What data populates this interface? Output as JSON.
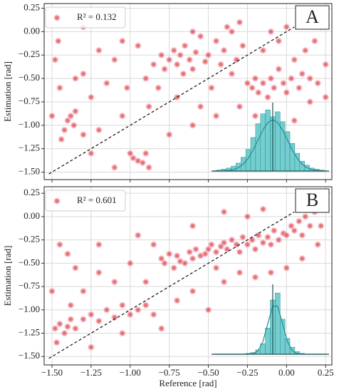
{
  "chart_data": [
    {
      "type": "scatter",
      "panel_label": "A",
      "legend_label": "R² = 0.132",
      "ylabel": "Estimation [rad]",
      "color": "#d9442f",
      "grid": true,
      "xlim": [
        -1.55,
        0.29
      ],
      "ylim": [
        -1.58,
        0.3
      ],
      "xticks": [
        -1.5,
        -1.25,
        -1.0,
        -0.75,
        -0.5,
        -0.25,
        0.0,
        0.25
      ],
      "yticks": [
        0.25,
        {
          "value": 0.0,
          "label": "0.00"
        },
        {
          "value": -0.25,
          "label": "−0.25"
        },
        {
          "value": -0.5,
          "label": "−0.50"
        },
        {
          "value": -0.75,
          "label": "−0.75"
        },
        {
          "value": -1.0,
          "label": "−1.00"
        },
        {
          "value": -1.25,
          "label": "−1.25"
        },
        {
          "value": -1.5,
          "label": "−1.50"
        }
      ],
      "x": [
        -1.45,
        -1.42,
        -1.4,
        -1.38,
        -1.36,
        -1.44,
        -1.35,
        -1.3,
        -1.48,
        -1.46,
        -1.3,
        -1.25,
        -1.2,
        -1.15,
        -1.1,
        -1.05,
        -1.0,
        -0.98,
        -0.95,
        -0.92,
        -0.88,
        -0.9,
        -1.02,
        -0.95,
        -0.88,
        -0.85,
        -0.8,
        -0.78,
        -0.75,
        -0.72,
        -0.7,
        -0.68,
        -0.66,
        -0.65,
        -0.62,
        -0.6,
        -0.58,
        -0.55,
        -0.52,
        -0.5,
        -0.48,
        -0.45,
        -0.42,
        -0.4,
        -0.38,
        -0.35,
        -0.32,
        -0.3,
        -0.28,
        -0.25,
        -0.22,
        -0.2,
        -0.18,
        -0.15,
        -0.12,
        -0.1,
        -0.08,
        -0.05,
        -0.02,
        0.0,
        0.03,
        0.05,
        0.08,
        0.1,
        0.12,
        0.15,
        0.18,
        0.2,
        0.22,
        0.25,
        -0.15,
        -0.1,
        -0.3,
        -0.45,
        -0.6,
        -0.75,
        -0.82,
        -1.2,
        -1.35,
        -1.5,
        -1.25,
        -1.1,
        -0.7,
        -0.55,
        -0.2,
        0.05,
        0.15,
        -0.05,
        0.0,
        -0.35,
        -0.6,
        -1.3,
        -1.05,
        0.25,
        -0.9
      ],
      "y": [
        -0.6,
        -1.05,
        -0.95,
        -0.9,
        -1.0,
        -1.15,
        -0.85,
        -1.1,
        -0.3,
        -0.1,
        -0.45,
        -0.7,
        -1.05,
        -0.55,
        -0.3,
        -0.9,
        -1.3,
        -1.35,
        -1.38,
        -1.4,
        -1.45,
        -1.3,
        -0.6,
        -0.15,
        -0.8,
        -0.35,
        -0.25,
        -0.4,
        -0.3,
        -0.2,
        -0.35,
        -0.25,
        -0.45,
        -0.15,
        -0.3,
        -0.4,
        -0.22,
        -0.05,
        -0.32,
        -0.25,
        -0.6,
        -0.1,
        -0.35,
        -0.2,
        0.05,
        -0.45,
        -0.3,
        0.1,
        -0.15,
        -0.55,
        -0.6,
        -0.5,
        -0.65,
        -0.55,
        -0.7,
        -0.5,
        -0.6,
        -0.4,
        -0.55,
        -0.65,
        -0.5,
        -0.3,
        -0.6,
        -0.45,
        -0.2,
        -0.5,
        -0.1,
        -0.55,
        0.05,
        -0.35,
        -0.2,
        0.0,
        -0.8,
        -0.9,
        -1.0,
        -1.1,
        -0.6,
        -0.2,
        -0.5,
        -0.9,
        -1.3,
        -1.45,
        -0.7,
        -0.8,
        -0.9,
        -0.95,
        -0.75,
        -0.1,
        0.05,
        0.0,
        0.0,
        0.05,
        -0.1,
        -0.7,
        -0.5
      ],
      "identity_line": {
        "x": [
          -1.52,
          0.05
        ],
        "y": [
          -1.52,
          0.05
        ]
      },
      "inset": {
        "color": "#5cc6c8",
        "ylim": [
          0,
          65
        ],
        "mean": 0.05,
        "bins": [
          -1.2,
          -1.1,
          -1.0,
          -0.9,
          -0.8,
          -0.7,
          -0.6,
          -0.5,
          -0.4,
          -0.3,
          -0.2,
          -0.1,
          0.0,
          0.1,
          0.2,
          0.3,
          0.4,
          0.5,
          0.6,
          0.7,
          0.8,
          0.9,
          1.0,
          1.1,
          1.2
        ],
        "counts": [
          0,
          1,
          2,
          3,
          5,
          8,
          14,
          22,
          34,
          48,
          58,
          62,
          55,
          60,
          50,
          40,
          28,
          18,
          10,
          6,
          3,
          2,
          1,
          0
        ],
        "fit": [
          0,
          0.1,
          0.2,
          0.6,
          1.5,
          3.4,
          7,
          12.9,
          21.4,
          31.5,
          41.7,
          49.2,
          52,
          49.2,
          41.7,
          31.5,
          21.4,
          12.9,
          7,
          3.4,
          1.5,
          0.6,
          0.2,
          0.1
        ]
      }
    },
    {
      "type": "scatter",
      "panel_label": "B",
      "legend_label": "R² = 0.601",
      "ylabel": "Estimation [rad]",
      "xlabel": "Reference [rad]",
      "color": "#d9442f",
      "grid": true,
      "xlim": [
        -1.55,
        0.29
      ],
      "ylim": [
        -1.59,
        0.32
      ],
      "xticks": [
        {
          "value": -1.5,
          "label": "−1.50"
        },
        {
          "value": -1.25,
          "label": "−1.25"
        },
        {
          "value": -1.0,
          "label": "−1.00"
        },
        {
          "value": -0.75,
          "label": "−0.75"
        },
        {
          "value": -0.5,
          "label": "−0.50"
        },
        {
          "value": -0.25,
          "label": "−0.25"
        },
        {
          "value": 0.0,
          "label": "0.00"
        },
        0.25
      ],
      "yticks": [
        0.25,
        {
          "value": 0.0,
          "label": "0.00"
        },
        {
          "value": -0.25,
          "label": "−0.25"
        },
        {
          "value": -0.5,
          "label": "−0.50"
        },
        {
          "value": -0.75,
          "label": "−0.75"
        },
        {
          "value": -1.0,
          "label": "−1.00"
        },
        {
          "value": -1.25,
          "label": "−1.25"
        },
        {
          "value": -1.5,
          "label": "−1.50"
        }
      ],
      "x": [
        -1.48,
        -1.45,
        -1.42,
        -1.4,
        -1.38,
        -1.35,
        -1.5,
        -1.47,
        -1.3,
        -1.25,
        -1.2,
        -1.15,
        -1.1,
        -1.05,
        -1.0,
        -0.95,
        -0.9,
        -0.85,
        -1.4,
        -1.35,
        -1.2,
        -1.1,
        -1.0,
        -1.3,
        -1.45,
        -0.8,
        -0.78,
        -0.75,
        -0.72,
        -0.7,
        -0.68,
        -0.65,
        -0.62,
        -0.6,
        -0.58,
        -0.55,
        -0.52,
        -0.5,
        -0.48,
        -0.45,
        -0.42,
        -0.4,
        -0.38,
        -0.35,
        -0.32,
        -0.3,
        -0.28,
        -0.25,
        -0.22,
        -0.2,
        -0.18,
        -0.15,
        -0.12,
        -0.1,
        -0.08,
        -0.05,
        -0.02,
        0.0,
        0.03,
        0.05,
        0.08,
        0.1,
        0.12,
        0.15,
        0.18,
        0.2,
        0.25,
        -0.6,
        -0.4,
        -0.3,
        -0.2,
        -0.1,
        0.0,
        -0.5,
        -0.7,
        -0.85,
        -0.95,
        -1.2,
        -0.6,
        -0.4,
        -0.25,
        -0.15,
        -1.05,
        -0.8,
        -1.25,
        -1.38,
        -0.9,
        -0.45,
        0.1,
        0.22
      ],
      "y": [
        -1.2,
        -1.15,
        -1.25,
        -1.18,
        -1.1,
        -1.2,
        -0.8,
        -1.35,
        -1.1,
        -1.05,
        -1.12,
        -1.0,
        -1.08,
        -0.95,
        -1.05,
        -1.0,
        -0.95,
        -1.05,
        -0.4,
        -0.55,
        -0.6,
        -0.7,
        -0.5,
        -0.8,
        -0.3,
        -0.45,
        -0.5,
        -0.4,
        -0.55,
        -0.42,
        -0.48,
        -0.5,
        -0.38,
        -0.45,
        -0.35,
        -0.42,
        -0.4,
        -0.35,
        -0.3,
        -0.38,
        -0.32,
        -0.28,
        -0.35,
        -0.25,
        -0.3,
        -0.38,
        -0.22,
        -0.3,
        -0.25,
        -0.35,
        -0.2,
        -0.28,
        -0.22,
        -0.3,
        -0.15,
        -0.25,
        -0.18,
        -0.2,
        -0.1,
        -0.15,
        -0.05,
        -0.2,
        0.0,
        -0.1,
        0.05,
        -0.3,
        0.1,
        -0.8,
        -0.7,
        -0.6,
        -0.65,
        -0.6,
        -0.55,
        -1.0,
        -0.9,
        -0.3,
        -0.2,
        -0.3,
        -0.1,
        0.05,
        0.0,
        0.08,
        -1.25,
        -1.2,
        -1.4,
        -0.95,
        -0.7,
        -0.55,
        -0.45,
        -0.1
      ],
      "identity_line": {
        "x": [
          -1.52,
          0.05
        ],
        "y": [
          -1.52,
          0.05
        ]
      },
      "inset": {
        "color": "#5cc6c8",
        "ylim": [
          0,
          75
        ],
        "mean": 0.05,
        "bins": [
          -1.2,
          -1.1,
          -1.0,
          -0.9,
          -0.8,
          -0.7,
          -0.6,
          -0.5,
          -0.4,
          -0.3,
          -0.2,
          -0.1,
          0.0,
          0.1,
          0.2,
          0.3,
          0.4,
          0.5,
          0.6,
          0.7,
          0.8,
          0.9,
          1.0,
          1.1,
          1.2
        ],
        "counts": [
          0,
          0,
          0,
          0,
          0,
          0,
          0,
          1,
          2,
          5,
          12,
          30,
          62,
          70,
          40,
          18,
          8,
          3,
          1,
          0,
          0,
          0,
          0,
          0
        ],
        "fit": [
          0,
          0,
          0,
          0,
          0,
          0,
          0,
          0,
          0.6,
          3.8,
          14.4,
          35.2,
          55,
          55,
          35.2,
          14.4,
          3.8,
          0.6,
          0,
          0,
          0,
          0,
          0,
          0
        ]
      }
    }
  ]
}
